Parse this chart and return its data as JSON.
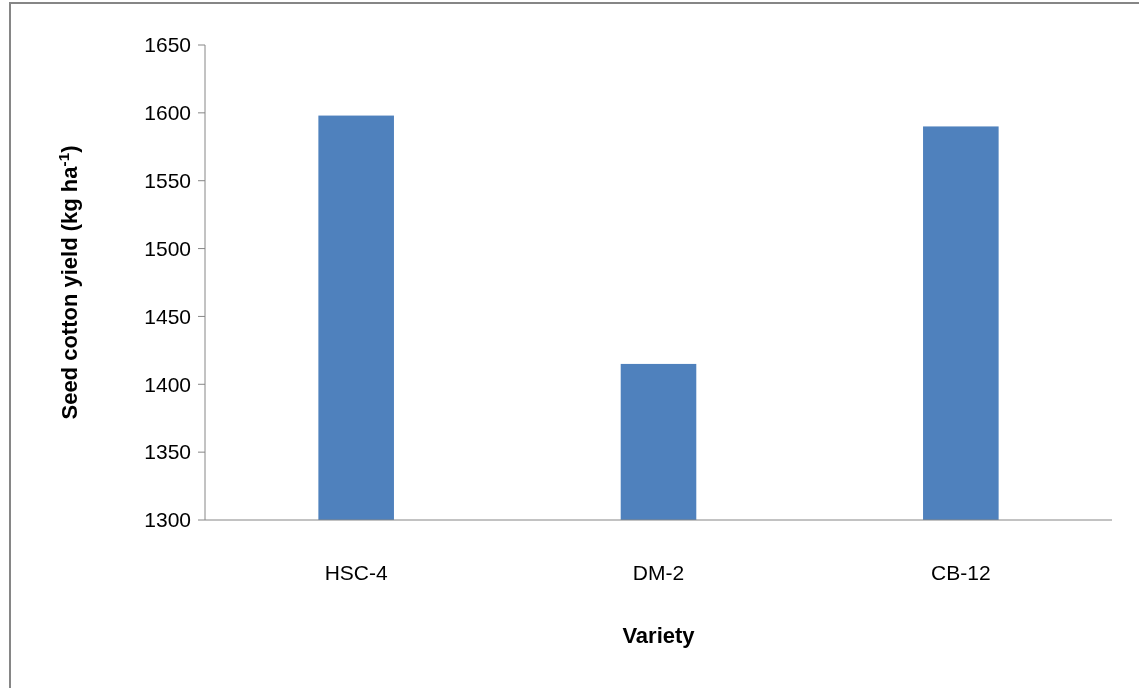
{
  "chart_data": {
    "type": "bar",
    "xlabel": "Variety",
    "ylabel": "Seed cotton yield (kg ha$^{-1}$)",
    "categories": [
      "HSC-4",
      "DM-2",
      "CB-12"
    ],
    "values": [
      1598,
      1415,
      1590
    ],
    "color": "#4f81bd",
    "ylim": [
      1300,
      1650
    ],
    "yticks": [
      1300,
      1350,
      1400,
      1450,
      1500,
      1550,
      1600,
      1650
    ],
    "grid": false
  }
}
